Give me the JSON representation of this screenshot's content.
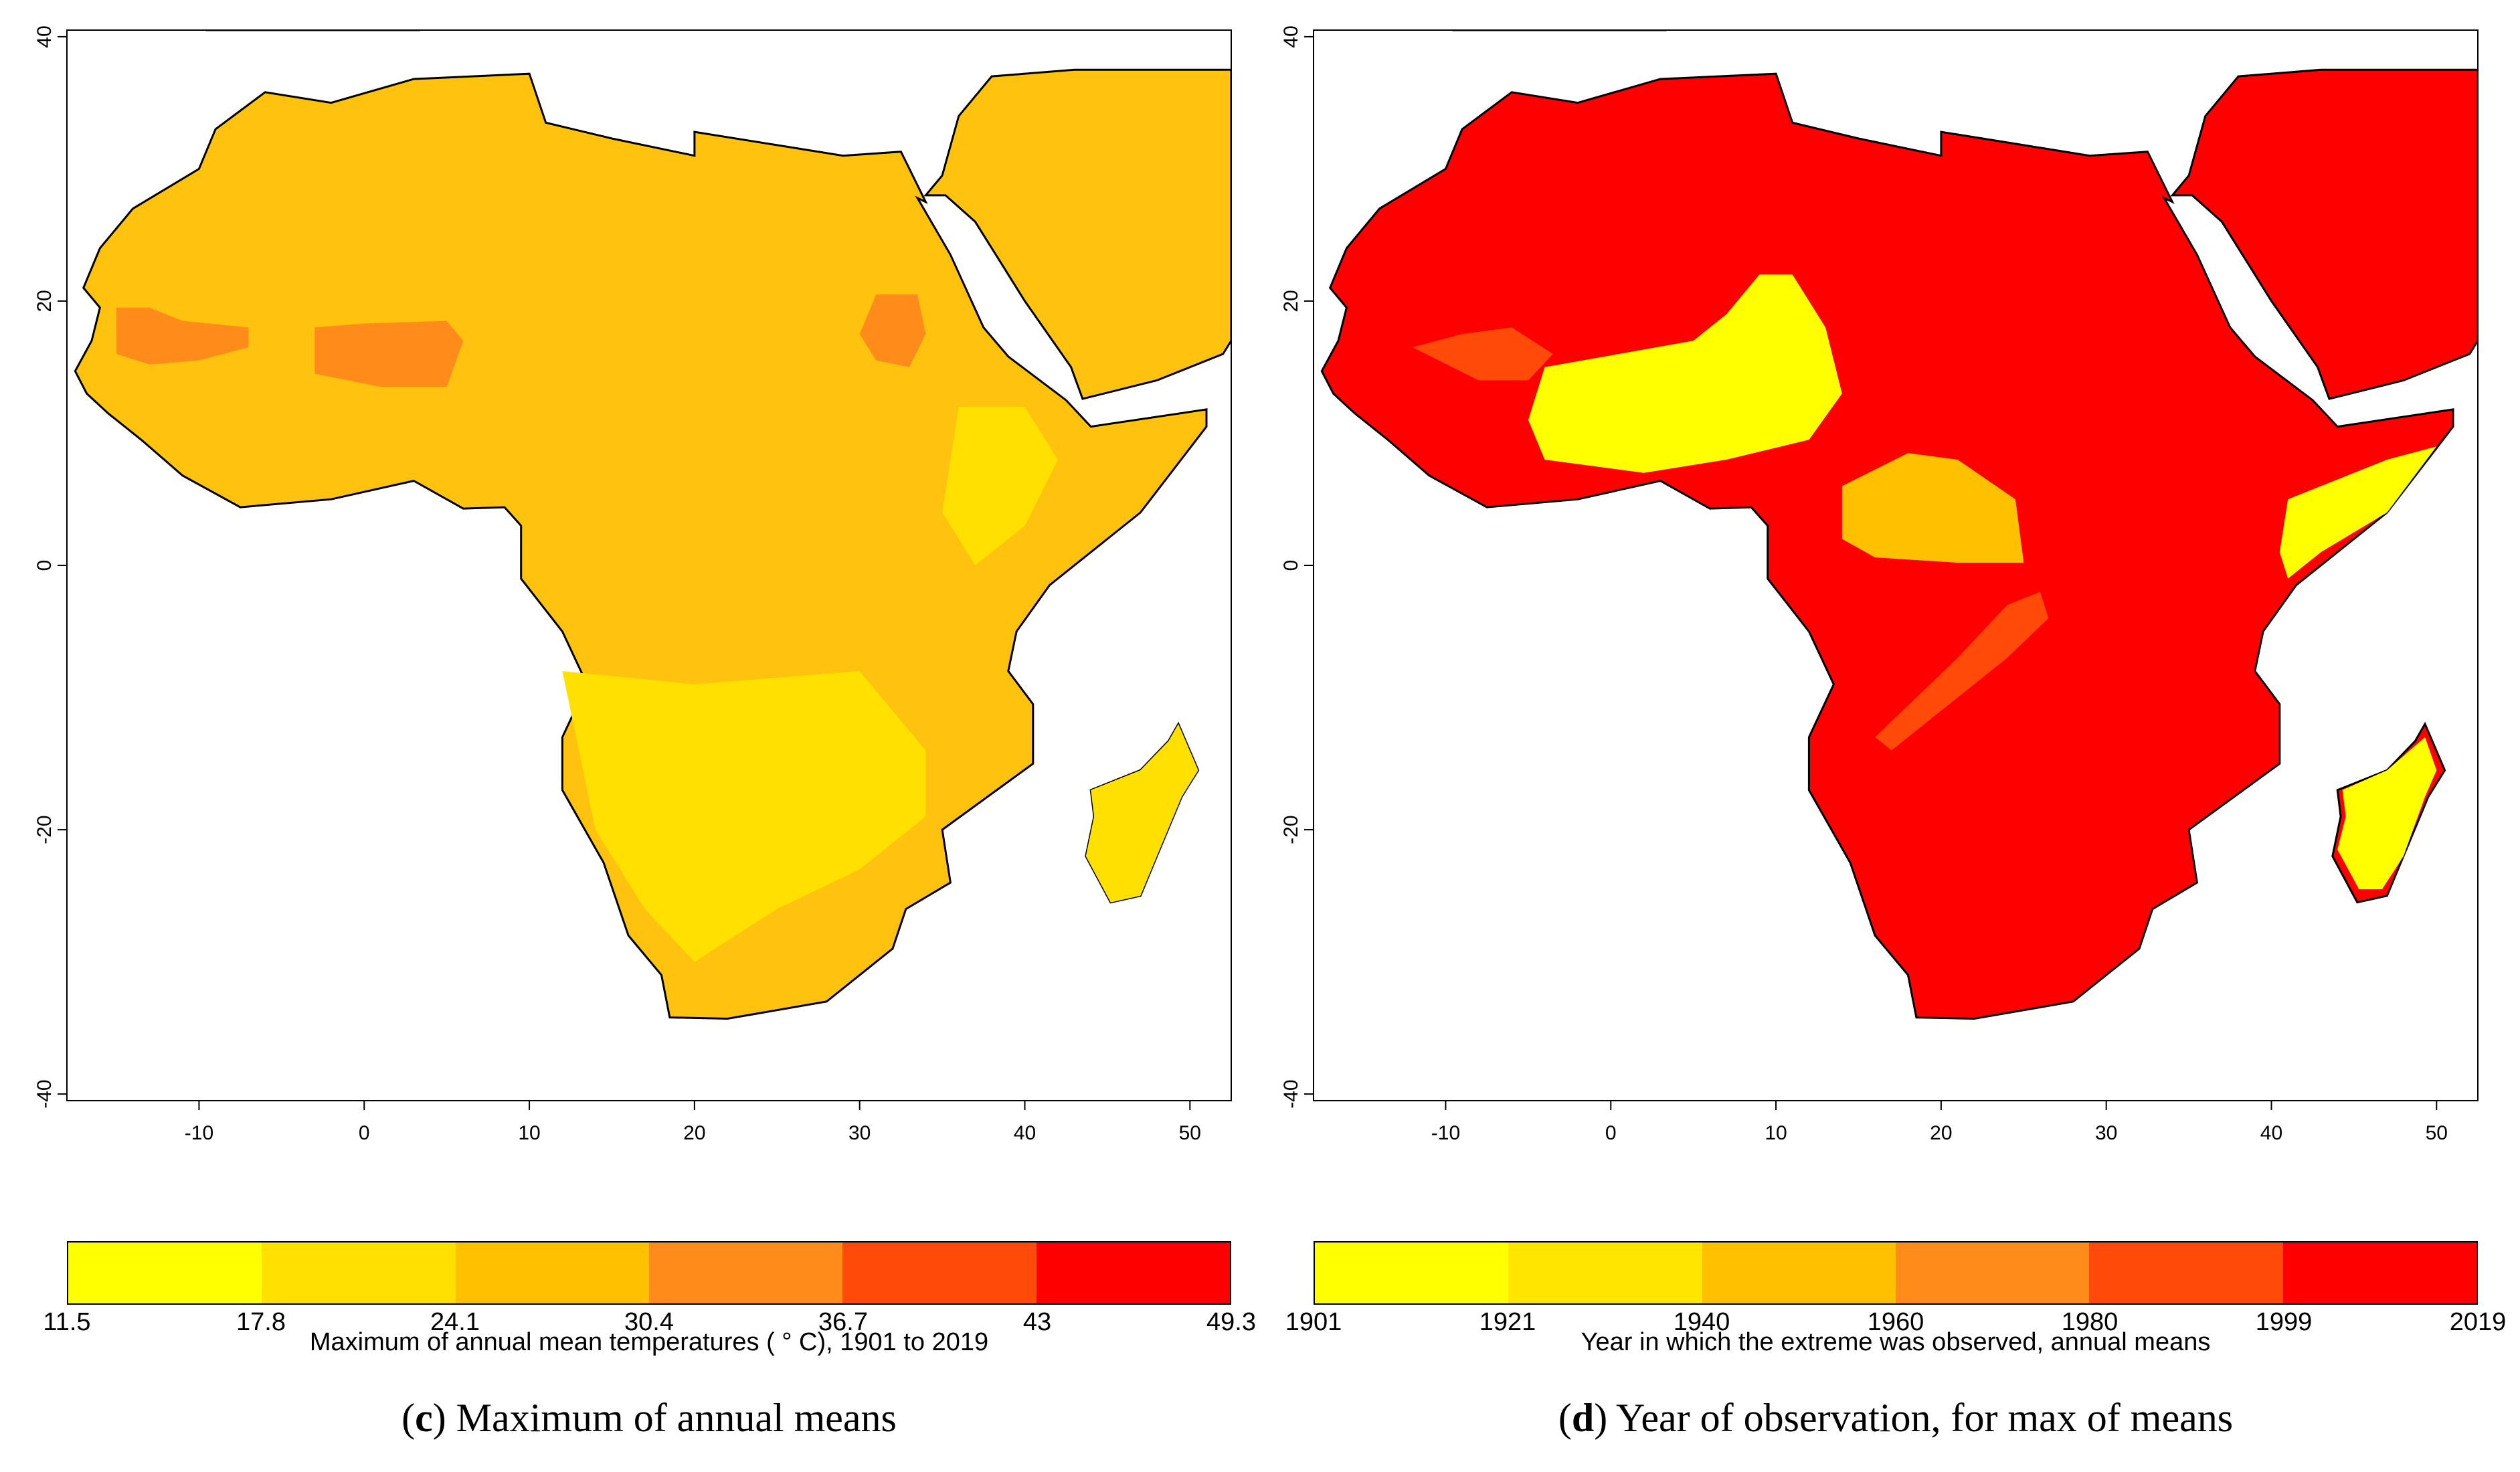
{
  "panels": [
    {
      "id": "c",
      "caption_letter": "c",
      "caption_text": "Maximum of annual means",
      "colorbar": {
        "title": "Maximum of annual mean temperatures ( ° C), 1901 to 2019",
        "tick_labels": [
          "11.5",
          "17.8",
          "24.1",
          "30.4",
          "36.7",
          "43",
          "49.3"
        ],
        "colors": [
          "#ffff00",
          "#ffe000",
          "#ffc000",
          "#ff8c1a",
          "#ff4a0a",
          "#ff0000"
        ]
      },
      "map": {
        "land_color": "#ffc20e",
        "hot_color": "#ff8c1a",
        "mild_color": "#ffe000",
        "cool_color": "#ffff00"
      }
    },
    {
      "id": "d",
      "caption_letter": "d",
      "caption_text": "Year of observation, for max of means",
      "colorbar": {
        "title": "Year in which the extreme was observed, annual means",
        "tick_labels": [
          "1901",
          "1921",
          "1940",
          "1960",
          "1980",
          "1999",
          "2019"
        ],
        "colors": [
          "#ffff00",
          "#ffe600",
          "#ffc000",
          "#ff8c1a",
          "#ff4a0a",
          "#ff0000"
        ]
      },
      "map": {
        "land_color": "#ff0000",
        "early_color": "#ffff00",
        "mid_color": "#ffc000",
        "late_color": "#ff4a0a"
      }
    }
  ],
  "axes": {
    "x_ticks": [
      -10,
      0,
      10,
      20,
      30,
      40,
      50
    ],
    "y_ticks": [
      40,
      20,
      0,
      -20,
      -40
    ],
    "x_range": [
      -18,
      52.5
    ],
    "y_range": [
      -40.5,
      40.5
    ]
  }
}
